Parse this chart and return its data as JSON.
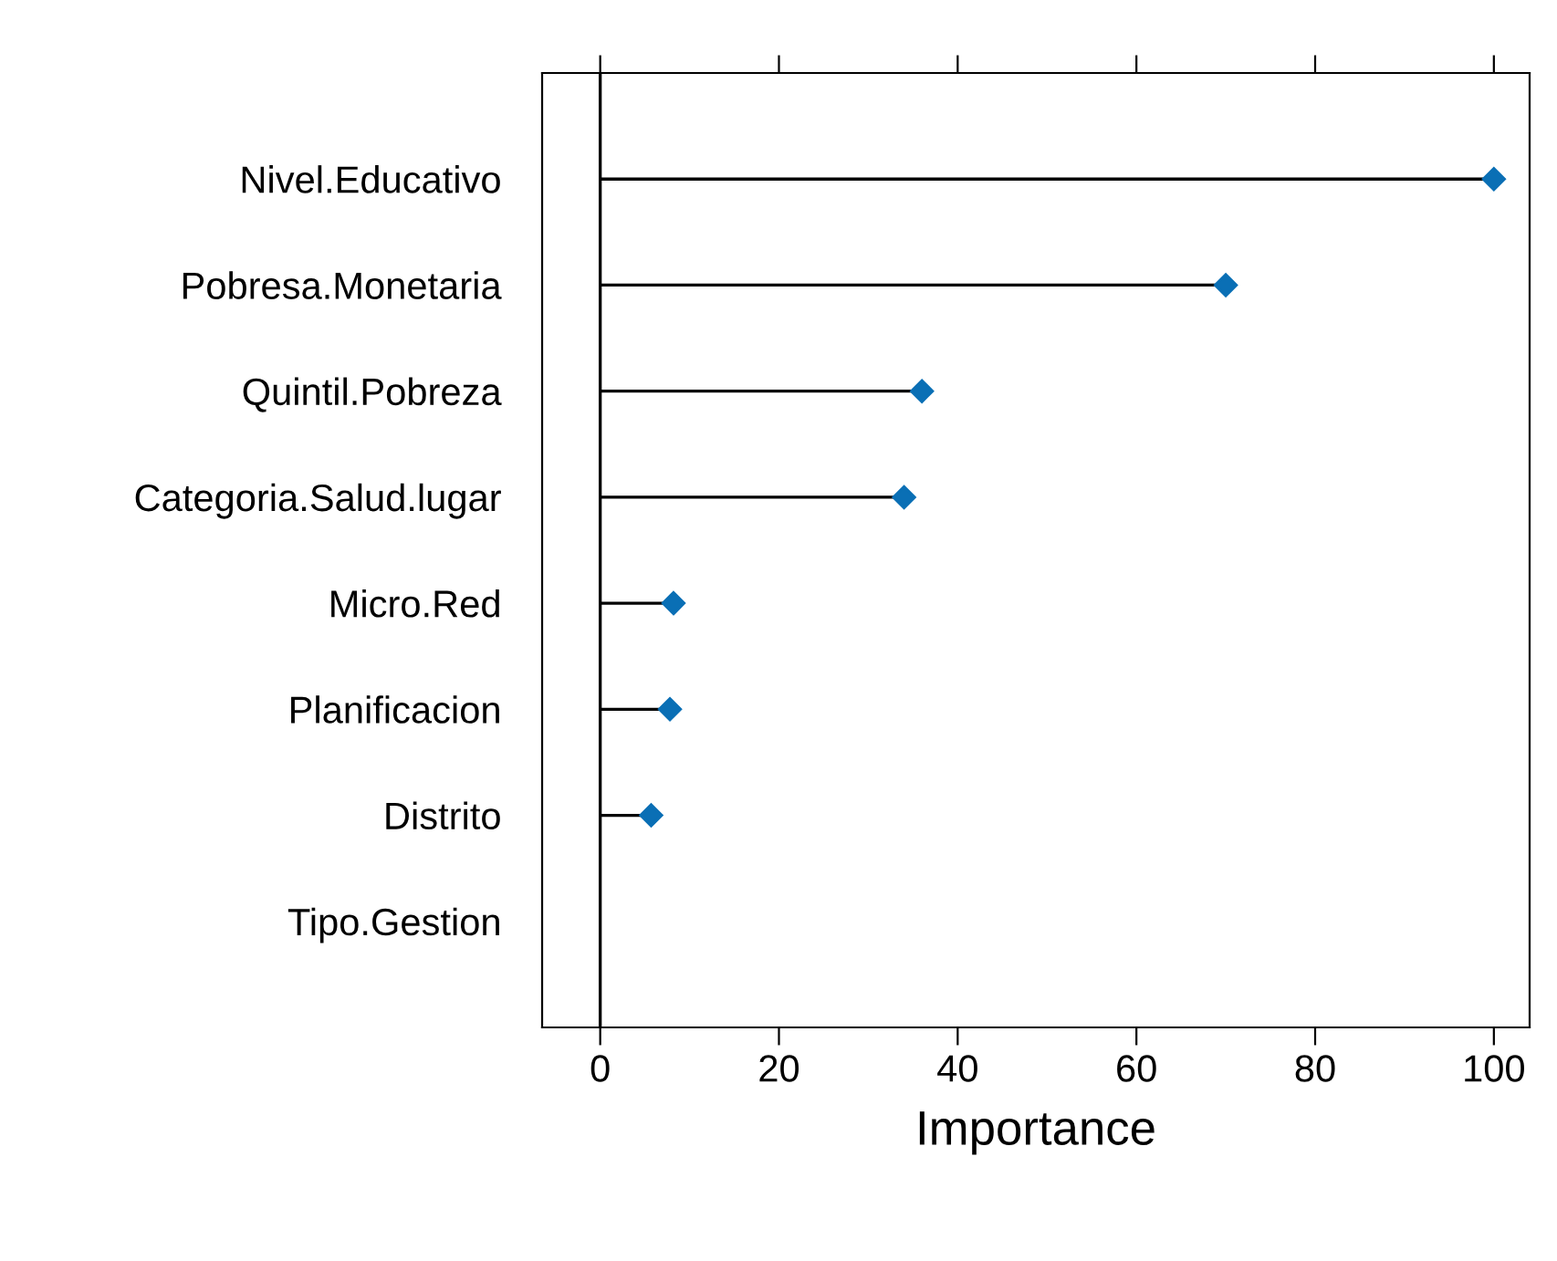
{
  "chart_data": {
    "type": "lollipop",
    "orientation": "horizontal",
    "xlabel": "Importance",
    "categories": [
      "Nivel.Educativo",
      "Pobresa.Monetaria",
      "Quintil.Pobreza",
      "Categoria.Salud.lugar",
      "Micro.Red",
      "Planificacion",
      "Distrito",
      "Tipo.Gestion"
    ],
    "values": [
      100,
      70,
      36,
      34,
      8.2,
      7.8,
      5.7,
      null
    ],
    "color": "#0a6fb5",
    "marker": "diamond",
    "xlim": [
      -6.5,
      104
    ],
    "xticks": [
      0,
      20,
      40,
      60,
      80,
      100
    ],
    "ref_lines": [
      {
        "axis": "x",
        "value": 0,
        "label": null,
        "color": "#000000"
      }
    ],
    "grid": false,
    "legend": false
  }
}
